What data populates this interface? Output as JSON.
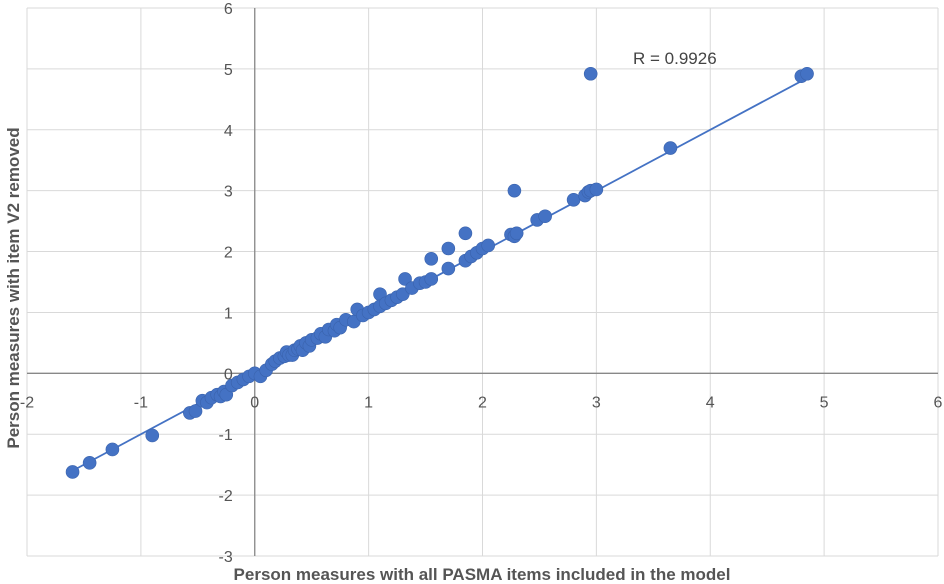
{
  "chart_data": {
    "type": "scatter",
    "xlabel": "Person measures with all PASMA items included in the model",
    "ylabel": "Person measures with item V2 removed",
    "xlim": [
      -2,
      6
    ],
    "ylim": [
      -3,
      6
    ],
    "xticks": [
      -2,
      -1,
      0,
      1,
      2,
      3,
      4,
      5,
      6
    ],
    "yticks": [
      -3,
      -2,
      -1,
      0,
      1,
      2,
      3,
      4,
      5,
      6
    ],
    "grid": true,
    "annotation": "R = 0.9926",
    "colors": {
      "points": "#4472C4",
      "trendline": "#4472C4",
      "grid": "#d9d9d9",
      "axis": "#888888"
    },
    "trendline": {
      "slope": 1.0,
      "intercept": 0.0
    },
    "x": [
      -1.6,
      -1.45,
      -1.25,
      -0.9,
      -0.57,
      -0.52,
      -0.46,
      -0.42,
      -0.38,
      -0.33,
      -0.3,
      -0.27,
      -0.25,
      -0.2,
      -0.15,
      -0.1,
      -0.05,
      0.0,
      0.05,
      0.1,
      0.15,
      0.18,
      0.22,
      0.26,
      0.28,
      0.3,
      0.33,
      0.35,
      0.38,
      0.4,
      0.42,
      0.45,
      0.48,
      0.5,
      0.55,
      0.58,
      0.62,
      0.65,
      0.7,
      0.72,
      0.75,
      0.8,
      0.87,
      0.9,
      0.95,
      1.0,
      1.05,
      1.1,
      1.1,
      1.15,
      1.2,
      1.25,
      1.3,
      1.32,
      1.38,
      1.45,
      1.5,
      1.55,
      1.55,
      1.7,
      1.7,
      1.85,
      1.85,
      1.9,
      1.95,
      2.0,
      2.05,
      2.25,
      2.28,
      2.28,
      2.3,
      2.48,
      2.55,
      2.8,
      2.9,
      2.93,
      2.95,
      2.95,
      3.0,
      3.65,
      4.8,
      4.85
    ],
    "y": [
      -1.62,
      -1.47,
      -1.25,
      -1.02,
      -0.65,
      -0.62,
      -0.45,
      -0.48,
      -0.4,
      -0.35,
      -0.38,
      -0.3,
      -0.35,
      -0.2,
      -0.15,
      -0.1,
      -0.05,
      0.0,
      -0.05,
      0.05,
      0.15,
      0.2,
      0.25,
      0.28,
      0.35,
      0.3,
      0.3,
      0.38,
      0.4,
      0.45,
      0.38,
      0.5,
      0.45,
      0.55,
      0.58,
      0.65,
      0.6,
      0.72,
      0.7,
      0.8,
      0.75,
      0.88,
      0.85,
      1.05,
      0.95,
      1.0,
      1.05,
      1.3,
      1.1,
      1.15,
      1.2,
      1.25,
      1.3,
      1.55,
      1.4,
      1.48,
      1.5,
      1.55,
      1.88,
      1.72,
      2.05,
      2.3,
      1.85,
      1.92,
      1.98,
      2.05,
      2.1,
      2.28,
      3.0,
      2.25,
      2.3,
      2.52,
      2.58,
      2.85,
      2.92,
      2.98,
      3.0,
      4.92,
      3.02,
      3.7,
      4.88,
      4.92
    ]
  }
}
